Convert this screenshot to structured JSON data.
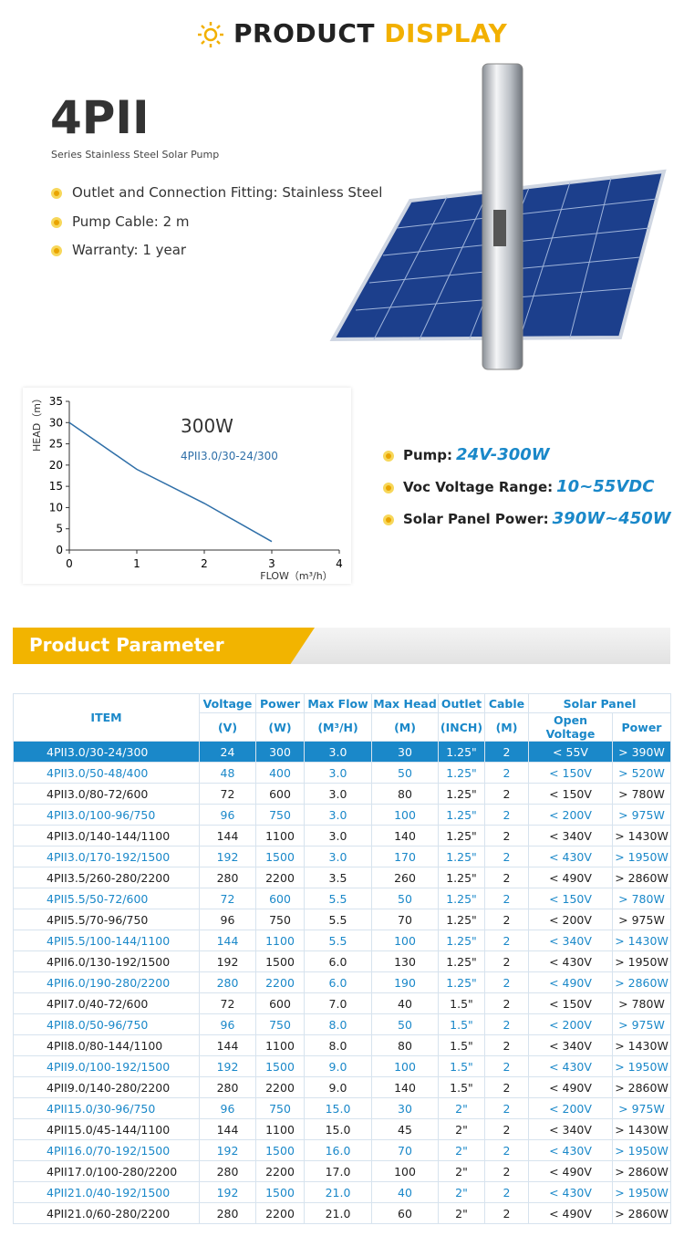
{
  "header": {
    "title_main": "PRODUCT",
    "title_accent": "DISPLAY"
  },
  "product": {
    "name": "4PII",
    "subtitle": "Series Stainless Steel Solar Pump",
    "features": [
      "Outlet and Connection Fitting:  Stainless Steel",
      "Pump Cable: 2 m",
      "Warranty: 1 year"
    ]
  },
  "curve": {
    "title": "300W",
    "model": "4PII3.0/30-24/300",
    "x_label": "FLOW（m³/h）",
    "y_label": "HEAD（m）",
    "xlim": [
      0,
      4
    ],
    "ylim": [
      0,
      35
    ],
    "xticks": [
      0,
      1,
      2,
      3,
      4
    ],
    "yticks": [
      0,
      5,
      10,
      15,
      20,
      25,
      30,
      35
    ],
    "x": [
      0,
      1,
      2,
      3
    ],
    "y": [
      30,
      19,
      11,
      2
    ],
    "color": "#2f6fa8"
  },
  "specs": [
    {
      "label": "Pump:",
      "value": "24V-300W"
    },
    {
      "label": "Voc Voltage Range:",
      "value": "10~55VDC"
    },
    {
      "label": "Solar Panel Power:",
      "value": "390W~450W"
    }
  ],
  "parameter": {
    "title": "Product Parameter",
    "header": {
      "item": "ITEM",
      "columns": [
        [
          "Voltage",
          "(V)"
        ],
        [
          "Power",
          "(W)"
        ],
        [
          "Max Flow",
          "(M³/H)"
        ],
        [
          "Max Head",
          "(M)"
        ],
        [
          "Outlet",
          "(INCH)"
        ],
        [
          "Cable",
          "(M)"
        ]
      ],
      "group": "Solar Panel",
      "group_columns": [
        "Open Voltage",
        "Power"
      ]
    },
    "rows": [
      [
        "4PII3.0/30-24/300",
        "24",
        "300",
        "3.0",
        "30",
        "1.25\"",
        "2",
        "< 55V",
        "> 390W"
      ],
      [
        "4PII3.0/50-48/400",
        "48",
        "400",
        "3.0",
        "50",
        "1.25\"",
        "2",
        "< 150V",
        "> 520W"
      ],
      [
        "4PII3.0/80-72/600",
        "72",
        "600",
        "3.0",
        "80",
        "1.25\"",
        "2",
        "< 150V",
        "> 780W"
      ],
      [
        "4PII3.0/100-96/750",
        "96",
        "750",
        "3.0",
        "100",
        "1.25\"",
        "2",
        "< 200V",
        "> 975W"
      ],
      [
        "4PII3.0/140-144/1100",
        "144",
        "1100",
        "3.0",
        "140",
        "1.25\"",
        "2",
        "< 340V",
        "> 1430W"
      ],
      [
        "4PII3.0/170-192/1500",
        "192",
        "1500",
        "3.0",
        "170",
        "1.25\"",
        "2",
        "< 430V",
        "> 1950W"
      ],
      [
        "4PII3.5/260-280/2200",
        "280",
        "2200",
        "3.5",
        "260",
        "1.25\"",
        "2",
        "< 490V",
        "> 2860W"
      ],
      [
        "4PII5.5/50-72/600",
        "72",
        "600",
        "5.5",
        "50",
        "1.25\"",
        "2",
        "< 150V",
        "> 780W"
      ],
      [
        "4PII5.5/70-96/750",
        "96",
        "750",
        "5.5",
        "70",
        "1.25\"",
        "2",
        "< 200V",
        "> 975W"
      ],
      [
        "4PII5.5/100-144/1100",
        "144",
        "1100",
        "5.5",
        "100",
        "1.25\"",
        "2",
        "< 340V",
        "> 1430W"
      ],
      [
        "4PII6.0/130-192/1500",
        "192",
        "1500",
        "6.0",
        "130",
        "1.25\"",
        "2",
        "< 430V",
        "> 1950W"
      ],
      [
        "4PII6.0/190-280/2200",
        "280",
        "2200",
        "6.0",
        "190",
        "1.25\"",
        "2",
        "< 490V",
        "> 2860W"
      ],
      [
        "4PII7.0/40-72/600",
        "72",
        "600",
        "7.0",
        "40",
        "1.5\"",
        "2",
        "< 150V",
        "> 780W"
      ],
      [
        "4PII8.0/50-96/750",
        "96",
        "750",
        "8.0",
        "50",
        "1.5\"",
        "2",
        "< 200V",
        "> 975W"
      ],
      [
        "4PII8.0/80-144/1100",
        "144",
        "1100",
        "8.0",
        "80",
        "1.5\"",
        "2",
        "< 340V",
        "> 1430W"
      ],
      [
        "4PII9.0/100-192/1500",
        "192",
        "1500",
        "9.0",
        "100",
        "1.5\"",
        "2",
        "< 430V",
        "> 1950W"
      ],
      [
        "4PII9.0/140-280/2200",
        "280",
        "2200",
        "9.0",
        "140",
        "1.5\"",
        "2",
        "< 490V",
        "> 2860W"
      ],
      [
        "4PII15.0/30-96/750",
        "96",
        "750",
        "15.0",
        "30",
        "2\"",
        "2",
        "< 200V",
        "> 975W"
      ],
      [
        "4PII15.0/45-144/1100",
        "144",
        "1100",
        "15.0",
        "45",
        "2\"",
        "2",
        "< 340V",
        "> 1430W"
      ],
      [
        "4PII16.0/70-192/1500",
        "192",
        "1500",
        "16.0",
        "70",
        "2\"",
        "2",
        "< 430V",
        "> 1950W"
      ],
      [
        "4PII17.0/100-280/2200",
        "280",
        "2200",
        "17.0",
        "100",
        "2\"",
        "2",
        "< 490V",
        "> 2860W"
      ],
      [
        "4PII21.0/40-192/1500",
        "192",
        "1500",
        "21.0",
        "40",
        "2\"",
        "2",
        "< 430V",
        "> 1950W"
      ],
      [
        "4PII21.0/60-280/2200",
        "280",
        "2200",
        "21.0",
        "60",
        "2\"",
        "2",
        "< 490V",
        "> 2860W"
      ]
    ]
  }
}
